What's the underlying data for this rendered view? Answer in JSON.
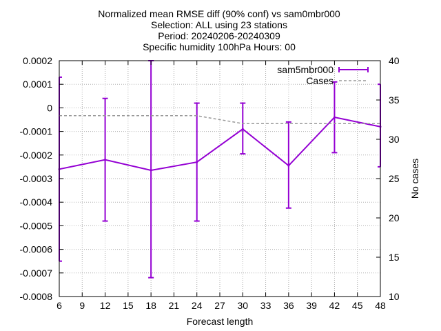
{
  "chart_data": {
    "type": "line",
    "title_lines": [
      "Normalized mean RMSE diff (90% conf) vs sam0mbr000",
      "Selection: ALL using    23 stations",
      "Period: 20240206-20240309",
      "Specific humidity 100hPa   Hours: 00"
    ],
    "xlabel": "Forecast length",
    "ylabel_left": "",
    "ylabel_right": "No cases",
    "x_ticks": [
      6,
      9,
      12,
      15,
      18,
      21,
      24,
      27,
      30,
      33,
      36,
      39,
      42,
      45,
      48
    ],
    "x_tick_labels": [
      "6",
      "9",
      "12",
      "15",
      "18",
      "21",
      "24",
      "27",
      "30",
      "33",
      "36",
      "39",
      "42",
      "45",
      "48"
    ],
    "xlim": [
      6,
      48
    ],
    "y_ticks": [
      0.0002,
      0.0001,
      0,
      -0.0001,
      -0.0002,
      -0.0003,
      -0.0004,
      -0.0005,
      -0.0006,
      -0.0007,
      -0.0008
    ],
    "y_tick_labels": [
      "0.0002",
      "0.0001",
      "0",
      "-0.0001",
      "-0.0002",
      "-0.0003",
      "-0.0004",
      "-0.0005",
      "-0.0006",
      "-0.0007",
      "-0.0008"
    ],
    "ylim": [
      -0.0008,
      0.0002
    ],
    "y2_ticks": [
      40,
      35,
      30,
      25,
      20,
      15,
      10
    ],
    "y2_tick_labels": [
      "40",
      "35",
      "30",
      "25",
      "20",
      "15",
      "10"
    ],
    "y2lim": [
      10,
      40
    ],
    "grid": true,
    "legend_position": "top-right",
    "series": [
      {
        "name": "sam5mbr000",
        "color": "#9400d3",
        "style": "errorbars",
        "x": [
          6,
          12,
          18,
          24,
          30,
          36,
          42,
          48
        ],
        "y": [
          -0.00026,
          -0.00022,
          -0.000265,
          -0.00023,
          -9e-05,
          -0.000245,
          -4e-05,
          -8e-05
        ],
        "y_low": [
          -0.00065,
          -0.00048,
          -0.00072,
          -0.00048,
          -0.000195,
          -0.000425,
          -0.00019,
          -0.00025
        ],
        "y_high": [
          0.00013,
          4e-05,
          0.0002,
          2e-05,
          2e-05,
          -6e-05,
          0.00011,
          0.0001
        ]
      },
      {
        "name": "Cases",
        "color": "#999999",
        "style": "dashed",
        "axis": "right",
        "x": [
          6,
          12,
          18,
          24,
          30,
          36,
          42,
          48
        ],
        "y": [
          33,
          33,
          33,
          33,
          32,
          32,
          32,
          32
        ]
      }
    ]
  }
}
